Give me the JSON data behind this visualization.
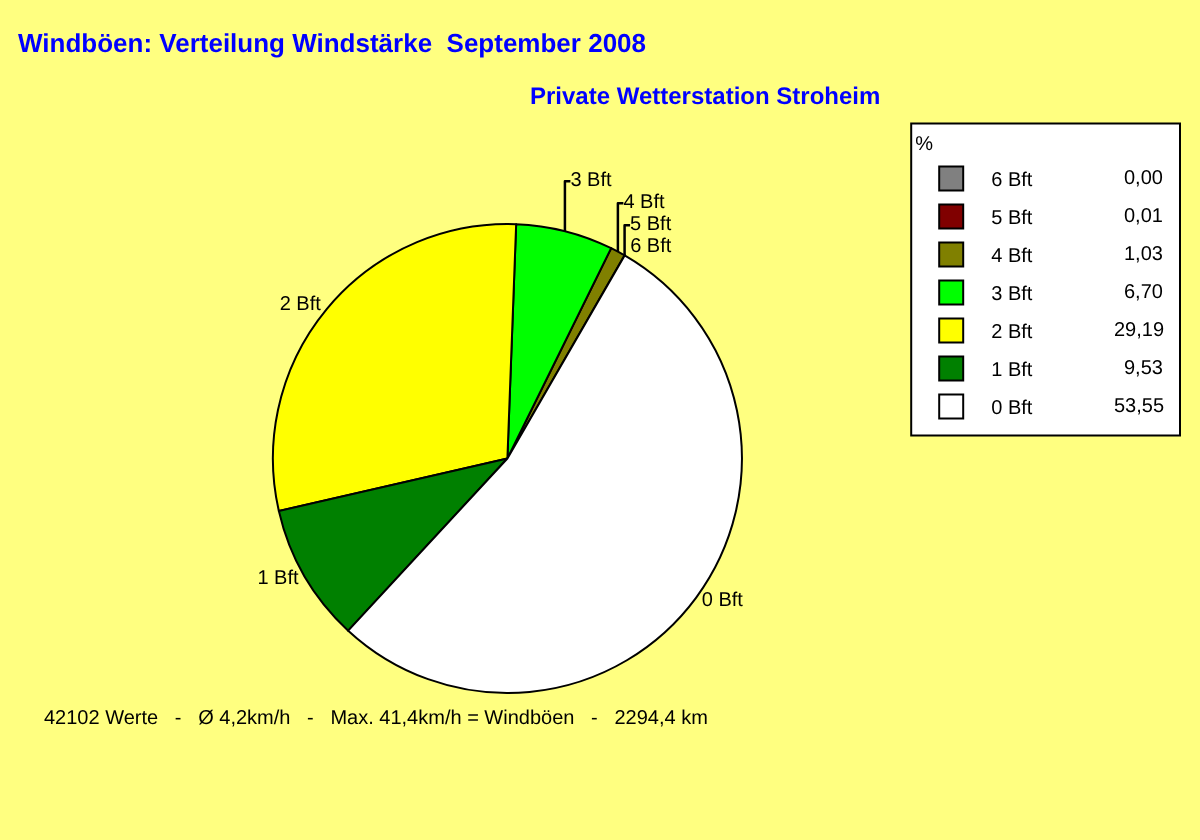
{
  "chart_data": {
    "type": "pie",
    "title": "Windböen: Verteilung Windstärke  September 2008",
    "subtitle": "Private Wetterstation Stroheim",
    "categories": [
      "6 Bft",
      "5 Bft",
      "4 Bft",
      "3 Bft",
      "2 Bft",
      "1 Bft",
      "0 Bft"
    ],
    "values": [
      0.0,
      0.01,
      1.03,
      6.7,
      29.19,
      9.53,
      53.55
    ],
    "value_labels": [
      "0,00",
      "0,01",
      "1,03",
      "6,70",
      "29,19",
      "9,53",
      "53,55"
    ],
    "colors": [
      "#808080",
      "#800000",
      "#808000",
      "#00ff00",
      "#ffff00",
      "#008000",
      "#ffffff"
    ],
    "legend_title": "%",
    "legend": "top right",
    "annotations": [
      "42102 Werte   -   Ø 4,2km/h   -   Max. 41,4km/h = Windböen   -   2294,4 km"
    ]
  }
}
